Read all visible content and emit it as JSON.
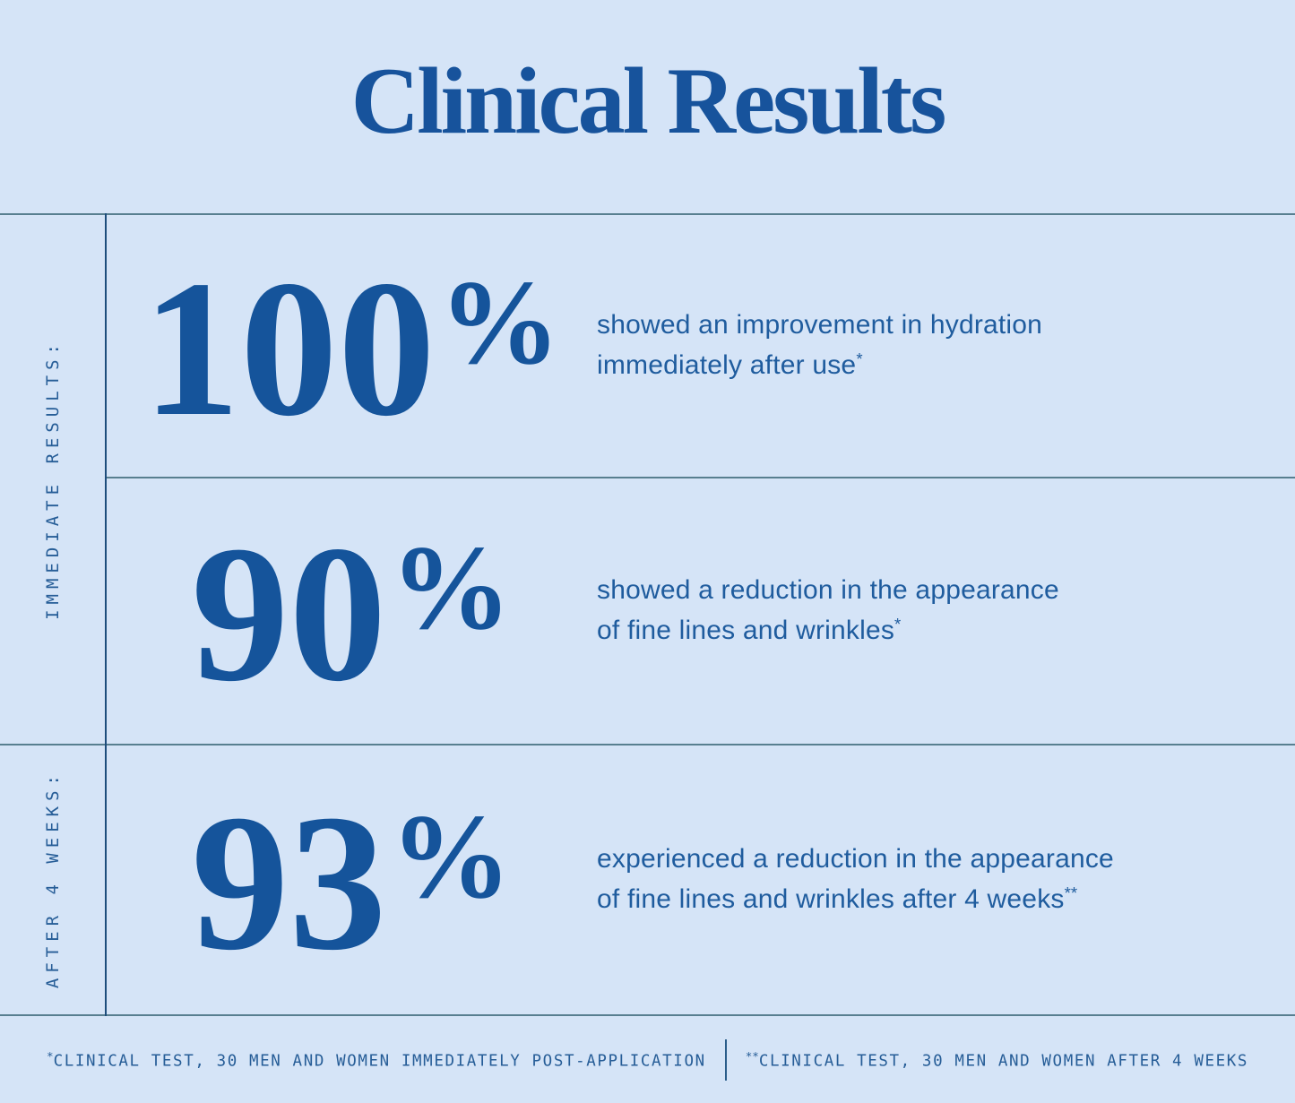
{
  "page": {
    "title": "Clinical Results",
    "background_color": "#d5e4f7",
    "accent_color": "#15549b",
    "rule_color": "#587f90"
  },
  "side_labels": [
    {
      "label": "IMMEDIATE RESULTS:"
    },
    {
      "label": "AFTER 4 WEEKS:"
    }
  ],
  "stats": [
    {
      "value": "100",
      "unit": "%",
      "desc_line1": "showed an improvement in hydration",
      "desc_line2": "immediately after use",
      "footnote_marker": "*"
    },
    {
      "value": "90",
      "unit": "%",
      "desc_line1": "showed a reduction in the appearance",
      "desc_line2": "of fine lines and wrinkles",
      "footnote_marker": "*"
    },
    {
      "value": "93",
      "unit": "%",
      "desc_line1": "experienced a reduction in the appearance",
      "desc_line2": "of fine lines and wrinkles after 4 weeks",
      "footnote_marker": "**"
    }
  ],
  "footnotes": [
    {
      "marker": "*",
      "text": "CLINICAL TEST, 30 MEN AND WOMEN IMMEDIATELY POST-APPLICATION"
    },
    {
      "marker": "**",
      "text": "CLINICAL TEST, 30 MEN AND WOMEN AFTER 4 WEEKS"
    }
  ]
}
